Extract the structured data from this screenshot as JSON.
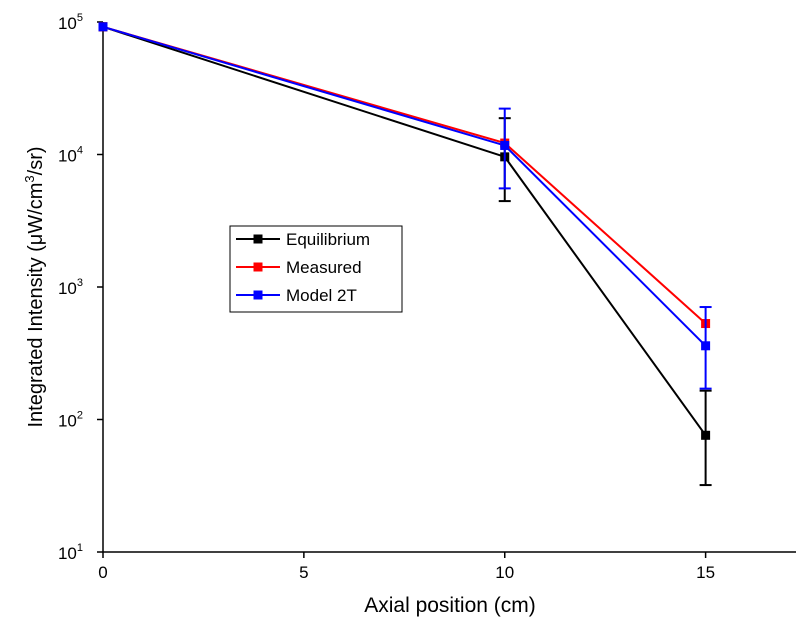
{
  "chart_data": {
    "type": "line",
    "xlabel": "Axial position (cm)",
    "ylabel": "Integrated Intensity (μW/cm",
    "ylabel_sup": "3",
    "ylabel_end": "/sr)",
    "x": [
      0,
      10,
      15
    ],
    "series": [
      {
        "name": "Equilibrium",
        "color": "#000000",
        "values": [
          92000,
          9600,
          76
        ],
        "error_lower": [
          null,
          4450,
          32
        ],
        "error_upper": [
          null,
          18800,
          165
        ]
      },
      {
        "name": "Measured",
        "color": "#ff0000",
        "values": [
          92000,
          12200,
          530
        ],
        "error_lower": [
          null,
          null,
          null
        ],
        "error_upper": [
          null,
          null,
          null
        ]
      },
      {
        "name": "Model 2T",
        "color": "#0000ff",
        "values": [
          92000,
          11700,
          360
        ],
        "error_lower": [
          null,
          5550,
          171
        ],
        "error_upper": [
          null,
          22200,
          706
        ]
      }
    ],
    "xlim": [
      0,
      17.25
    ],
    "xticks": [
      0,
      5,
      10,
      15
    ],
    "ylim": [
      10,
      100000
    ],
    "ylog": true,
    "yticks": [
      {
        "value": 10,
        "label": "10",
        "exponent": "1"
      },
      {
        "value": 100,
        "label": "10",
        "exponent": "2"
      },
      {
        "value": 1000,
        "label": "10",
        "exponent": "3"
      },
      {
        "value": 10000,
        "label": "10",
        "exponent": "4"
      },
      {
        "value": 100000,
        "label": "10",
        "exponent": "5"
      }
    ],
    "legend": "center-left"
  }
}
